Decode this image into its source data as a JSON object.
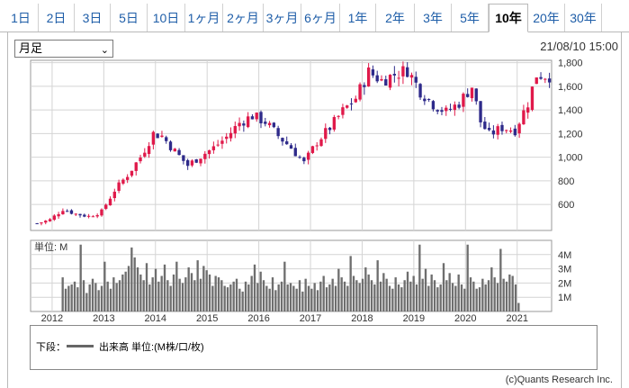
{
  "tabs": [
    {
      "label": "1日"
    },
    {
      "label": "2日"
    },
    {
      "label": "3日"
    },
    {
      "label": "5日"
    },
    {
      "label": "10日"
    },
    {
      "label": "1ヶ月"
    },
    {
      "label": "2ヶ月"
    },
    {
      "label": "3ヶ月"
    },
    {
      "label": "6ヶ月"
    },
    {
      "label": "1年"
    },
    {
      "label": "2年"
    },
    {
      "label": "3年"
    },
    {
      "label": "5年"
    },
    {
      "label": "10年"
    },
    {
      "label": "20年"
    },
    {
      "label": "30年"
    }
  ],
  "active_tab": "10年",
  "period_select": {
    "value": "月足"
  },
  "timestamp": "21/08/10 15:00",
  "legend": {
    "prefix": "下段：",
    "text": "出来高 単位:(M株/口/枚)"
  },
  "copyright": "(c)Quants Research Inc.",
  "colors": {
    "up": "#e0194a",
    "down": "#2e2a8a",
    "volume": "#6e6e6e",
    "grid": "#d4d4d4"
  },
  "chart_data": [
    {
      "type": "candlestick",
      "title": "",
      "yticks": [
        600,
        800,
        1000,
        1200,
        1400,
        1600,
        1800
      ],
      "ylim": [
        380,
        1820
      ],
      "xlabels": [
        "2012",
        "2013",
        "2014",
        "2015",
        "2016",
        "2017",
        "2018",
        "2019",
        "2020",
        "2021"
      ],
      "xrange": [
        "2011-08",
        "2021-08"
      ],
      "close_path": [
        [
          "2011-09",
          440
        ],
        [
          "2011-12",
          470
        ],
        [
          "2012-03",
          560
        ],
        [
          "2012-06",
          520
        ],
        [
          "2012-09",
          500
        ],
        [
          "2012-12",
          540
        ],
        [
          "2013-03",
          720
        ],
        [
          "2013-06",
          850
        ],
        [
          "2013-09",
          1000
        ],
        [
          "2013-12",
          1200
        ],
        [
          "2014-02",
          1180
        ],
        [
          "2014-05",
          1050
        ],
        [
          "2014-08",
          930
        ],
        [
          "2014-11",
          1010
        ],
        [
          "2015-02",
          1080
        ],
        [
          "2015-05",
          1170
        ],
        [
          "2015-08",
          1290
        ],
        [
          "2015-11",
          1350
        ],
        [
          "2016-02",
          1300
        ],
        [
          "2016-05",
          1180
        ],
        [
          "2016-08",
          1080
        ],
        [
          "2016-11",
          950
        ],
        [
          "2017-02",
          1130
        ],
        [
          "2017-05",
          1250
        ],
        [
          "2017-08",
          1390
        ],
        [
          "2017-11",
          1500
        ],
        [
          "2018-02",
          1720
        ],
        [
          "2018-05",
          1650
        ],
        [
          "2018-08",
          1700
        ],
        [
          "2018-11",
          1740
        ],
        [
          "2019-02",
          1560
        ],
        [
          "2019-05",
          1450
        ],
        [
          "2019-08",
          1380
        ],
        [
          "2019-11",
          1460
        ],
        [
          "2020-02",
          1600
        ],
        [
          "2020-04",
          1300
        ],
        [
          "2020-06",
          1190
        ],
        [
          "2020-09",
          1250
        ],
        [
          "2020-12",
          1230
        ],
        [
          "2021-03",
          1460
        ],
        [
          "2021-05",
          1700
        ],
        [
          "2021-08",
          1690
        ]
      ],
      "note": "monthly OHLC bars approximated from the close path"
    },
    {
      "type": "bar",
      "label": "単位: M",
      "yticks": [
        "1M",
        "2M",
        "3M",
        "4M"
      ],
      "ylim": [
        0,
        5
      ],
      "values": [
        2.4,
        1.6,
        1.8,
        1.9,
        2.1,
        1.7,
        4.7,
        2.2,
        1.3,
        1.9,
        2.3,
        2.0,
        1.5,
        1.8,
        3.5,
        2.1,
        1.6,
        2.4,
        2.0,
        2.2,
        2.6,
        2.8,
        3.2,
        4.5,
        3.8,
        3.1,
        2.6,
        2.2,
        3.4,
        1.9,
        2.4,
        3.0,
        2.1,
        2.5,
        3.3,
        2.2,
        1.8,
        2.6,
        3.5,
        2.3,
        2.0,
        2.4,
        3.1,
        2.7,
        2.2,
        3.6,
        2.3,
        3.2,
        2.9,
        2.6,
        1.8,
        2.5,
        2.4,
        2.2,
        1.8,
        1.7,
        1.9,
        2.1,
        2.3,
        1.6,
        1.4,
        2.1,
        1.9,
        2.5,
        3.3,
        2.0,
        2.8,
        2.2,
        1.8,
        1.6,
        2.4,
        1.5,
        1.9,
        2.1,
        3.5,
        1.9,
        2.0,
        1.8,
        1.6,
        2.2,
        1.4,
        2.3,
        1.8,
        1.6,
        2.0,
        1.5,
        2.1,
        2.5,
        1.7,
        1.9,
        2.3,
        1.8,
        3.0,
        2.4,
        2.1,
        1.8,
        3.9,
        2.5,
        2.2,
        2.0,
        2.3,
        3.1,
        2.6,
        2.2,
        1.9,
        3.6,
        2.1,
        2.7,
        2.3,
        1.8,
        1.6,
        2.4,
        1.9,
        1.7,
        2.2,
        2.8,
        2.1,
        2.5,
        1.9,
        4.7,
        2.3,
        3.0,
        1.8,
        2.6,
        2.2,
        1.7,
        1.9,
        3.4,
        2.2,
        2.7,
        2.0,
        1.8,
        2.6,
        1.9,
        1.6,
        4.7,
        2.4,
        2.1,
        1.6,
        1.7,
        2.3,
        1.9,
        2.2,
        3.1,
        2.4,
        2.0,
        4.4,
        2.3,
        2.1,
        2.6,
        2.5,
        1.9,
        0.6
      ]
    }
  ]
}
